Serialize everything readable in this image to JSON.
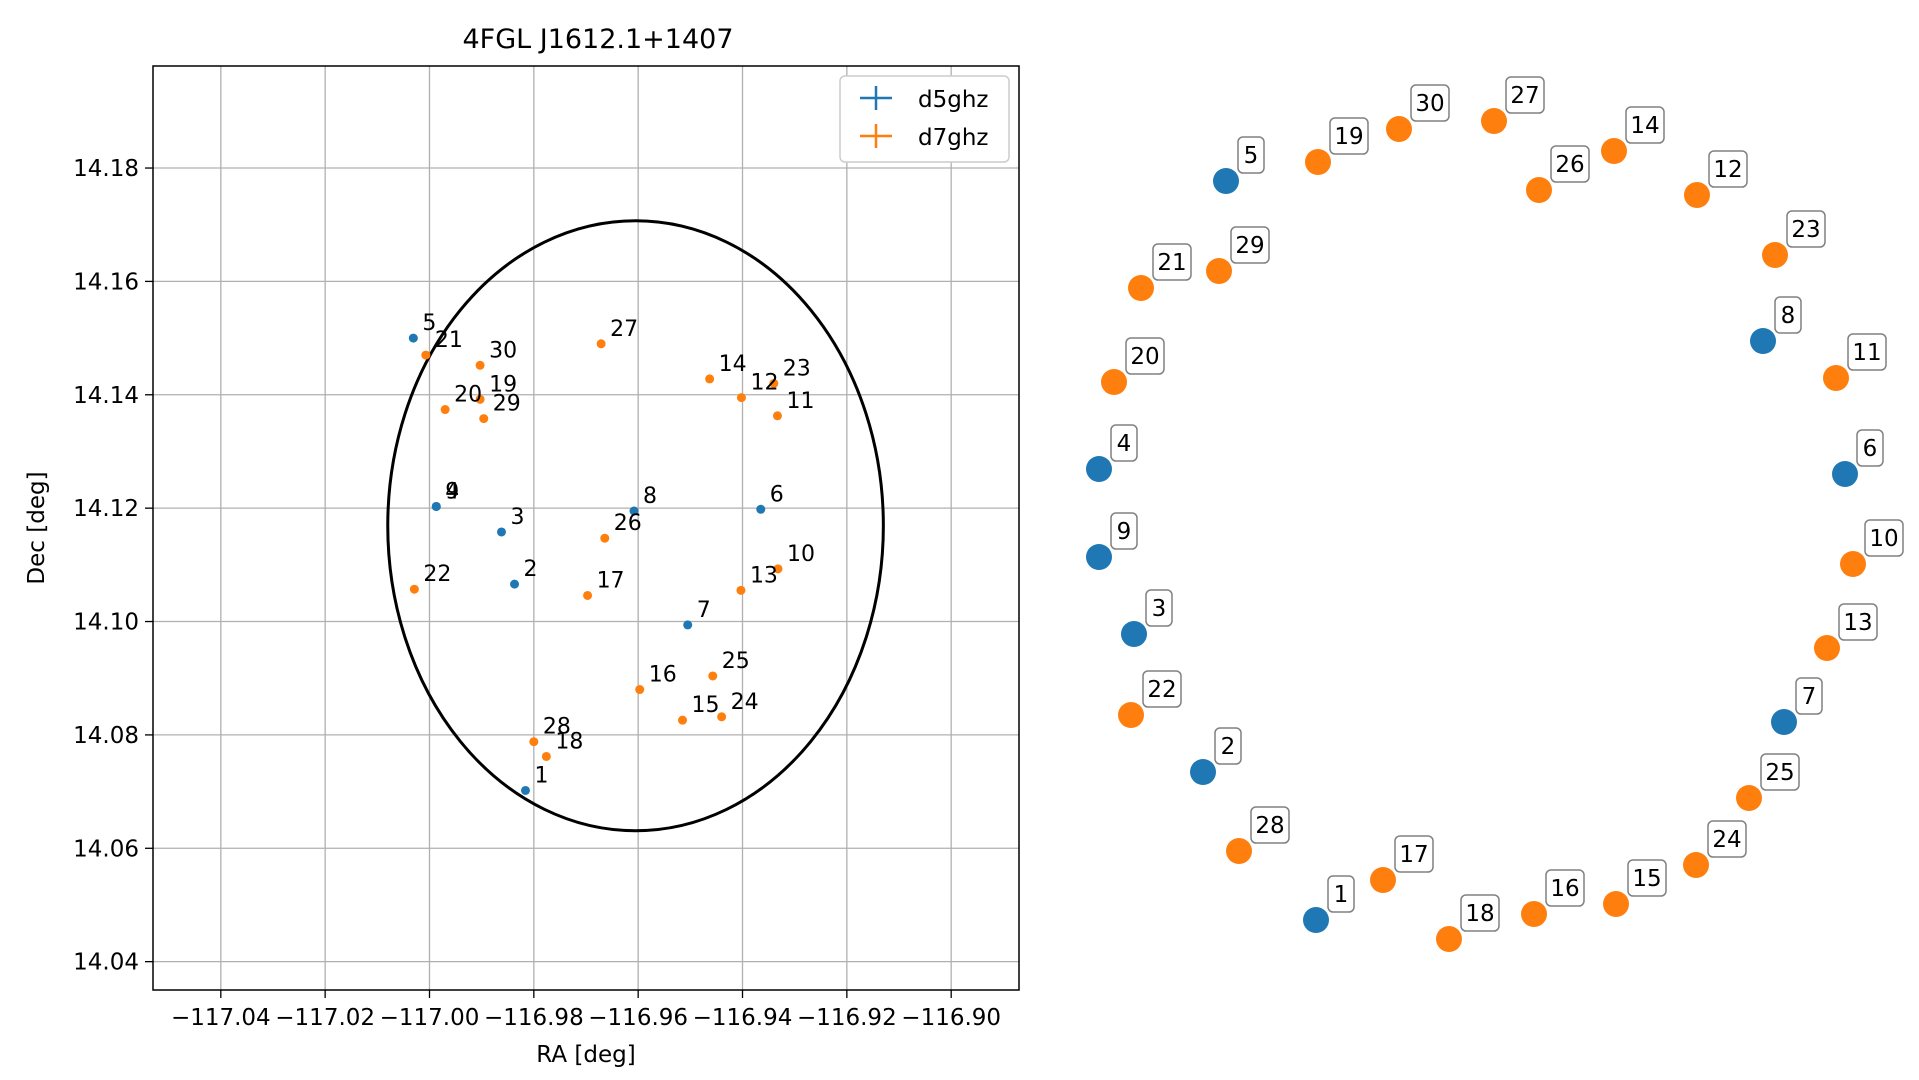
{
  "chart_data": [
    {
      "type": "scatter",
      "title": "4FGL J1612.1+1407",
      "xlabel": "RA [deg]",
      "ylabel": "Dec [deg]",
      "xlim": [
        -117.053,
        -116.887
      ],
      "ylim": [
        14.035,
        14.198
      ],
      "xticks": [
        -117.04,
        -117.02,
        -117.0,
        -116.98,
        -116.96,
        -116.94,
        -116.92,
        -116.9
      ],
      "xtick_labels": [
        "−117.04",
        "−117.02",
        "−117.00",
        "−116.98",
        "−116.96",
        "−116.94",
        "−116.92",
        "−116.90"
      ],
      "yticks": [
        14.04,
        14.06,
        14.08,
        14.1,
        14.12,
        14.14,
        14.16,
        14.18
      ],
      "ytick_labels": [
        "14.04",
        "14.06",
        "14.08",
        "14.10",
        "14.12",
        "14.14",
        "14.16",
        "14.18"
      ],
      "grid": true,
      "legend_position": "top-right",
      "ellipse": {
        "center_ra": -116.9605,
        "center_dec": 14.1169,
        "semi_ra": 0.0475,
        "semi_dec": 0.0538
      },
      "series": [
        {
          "name": "d5ghz",
          "color": "#1f77b4",
          "points": [
            {
              "label": "1",
              "ra": -116.9816,
              "dec": 14.0702
            },
            {
              "label": "2",
              "ra": -116.9837,
              "dec": 14.1066
            },
            {
              "label": "3",
              "ra": -116.9862,
              "dec": 14.1158
            },
            {
              "label": "4",
              "ra": -116.9987,
              "dec": 14.1203
            },
            {
              "label": "5",
              "ra": -117.0031,
              "dec": 14.15
            },
            {
              "label": "6",
              "ra": -116.9365,
              "dec": 14.1198
            },
            {
              "label": "7",
              "ra": -116.9505,
              "dec": 14.0994
            },
            {
              "label": "8",
              "ra": -116.9608,
              "dec": 14.1195
            },
            {
              "label": "9",
              "ra": -116.9987,
              "dec": 14.1203
            }
          ]
        },
        {
          "name": "d7ghz",
          "color": "#ff7f0e",
          "points": [
            {
              "label": "10",
              "ra": -116.9332,
              "dec": 14.1093
            },
            {
              "label": "11",
              "ra": -116.9333,
              "dec": 14.1363
            },
            {
              "label": "12",
              "ra": -116.9402,
              "dec": 14.1395
            },
            {
              "label": "13",
              "ra": -116.9403,
              "dec": 14.1055
            },
            {
              "label": "14",
              "ra": -116.9463,
              "dec": 14.1428
            },
            {
              "label": "15",
              "ra": -116.9515,
              "dec": 14.0826
            },
            {
              "label": "16",
              "ra": -116.9597,
              "dec": 14.088
            },
            {
              "label": "17",
              "ra": -116.9697,
              "dec": 14.1046
            },
            {
              "label": "18",
              "ra": -116.9776,
              "dec": 14.0762
            },
            {
              "label": "19",
              "ra": -116.9903,
              "dec": 14.1392
            },
            {
              "label": "20",
              "ra": -116.997,
              "dec": 14.1374
            },
            {
              "label": "21",
              "ra": -117.0007,
              "dec": 14.147
            },
            {
              "label": "22",
              "ra": -117.0029,
              "dec": 14.1057
            },
            {
              "label": "23",
              "ra": -116.934,
              "dec": 14.142
            },
            {
              "label": "24",
              "ra": -116.944,
              "dec": 14.0832
            },
            {
              "label": "25",
              "ra": -116.9457,
              "dec": 14.0904
            },
            {
              "label": "26",
              "ra": -116.9664,
              "dec": 14.1147
            },
            {
              "label": "27",
              "ra": -116.9671,
              "dec": 14.149
            },
            {
              "label": "28",
              "ra": -116.98,
              "dec": 14.0788
            },
            {
              "label": "29",
              "ra": -116.9896,
              "dec": 14.1358
            },
            {
              "label": "30",
              "ra": -116.9903,
              "dec": 14.1452
            }
          ]
        }
      ]
    },
    {
      "type": "scatter",
      "title": "",
      "note_layout": "labels only, no axes",
      "series": [
        {
          "name": "d5ghz",
          "color": "#1f77b4",
          "labels": [
            "1",
            "2",
            "3",
            "4",
            "5",
            "6",
            "7",
            "8",
            "9"
          ]
        },
        {
          "name": "d7ghz",
          "color": "#ff7f0e",
          "labels": [
            "10",
            "11",
            "12",
            "13",
            "14",
            "15",
            "16",
            "17",
            "18",
            "19",
            "20",
            "21",
            "22",
            "23",
            "24",
            "25",
            "26",
            "27",
            "28",
            "29",
            "30"
          ]
        }
      ]
    }
  ]
}
